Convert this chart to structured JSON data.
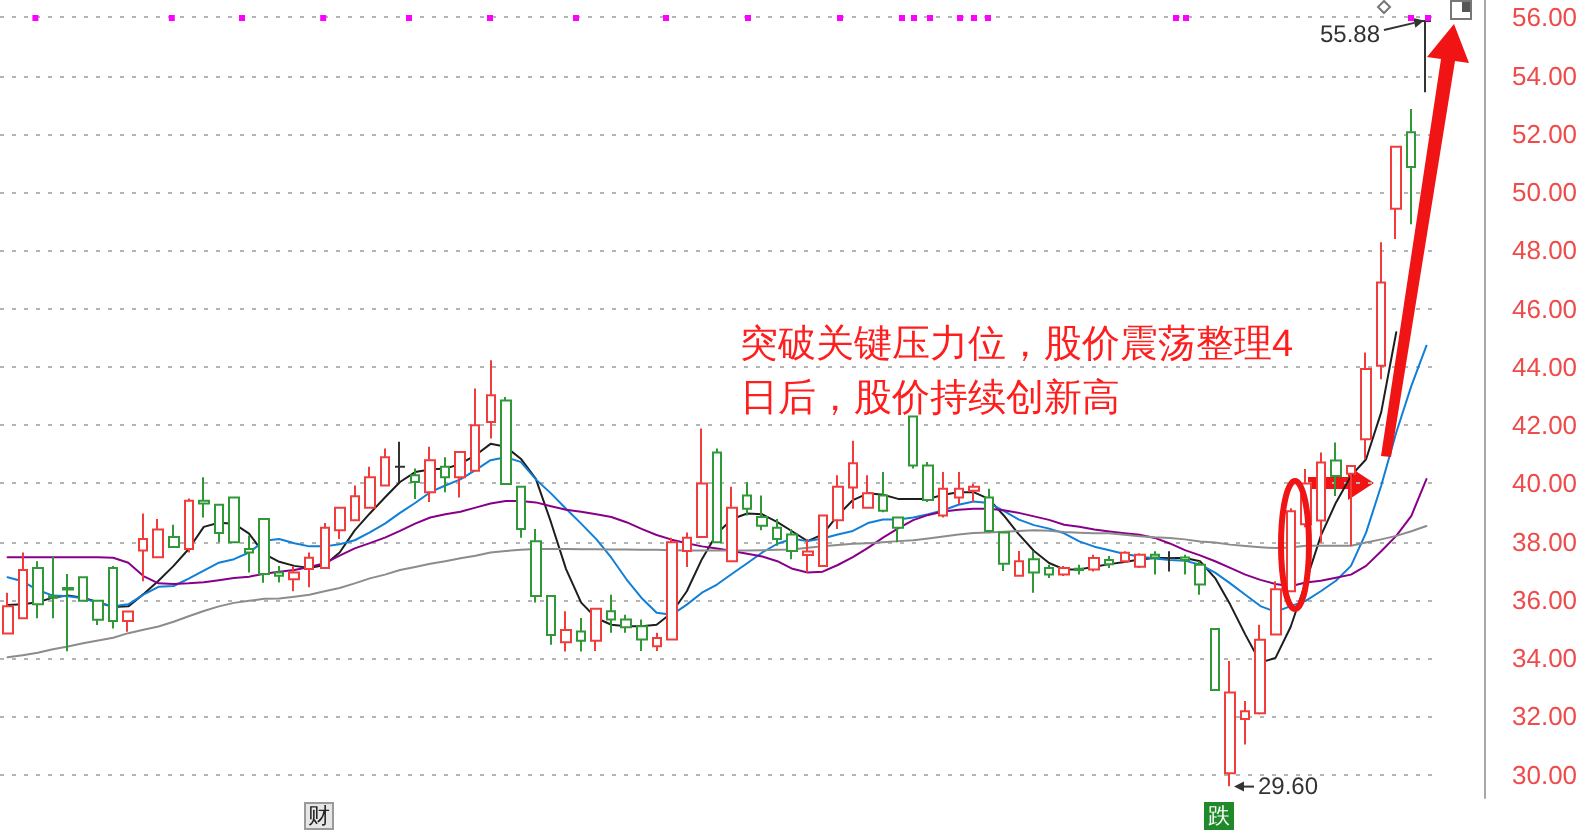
{
  "chart_data": {
    "type": "candlestick",
    "categories": [
      null,
      null,
      null,
      null,
      null,
      null,
      null,
      null,
      null,
      null,
      null,
      null,
      null,
      null,
      null,
      null,
      null,
      null,
      null,
      null,
      null,
      null,
      null,
      null,
      null,
      null,
      null,
      null,
      null,
      null,
      null,
      null,
      null,
      null,
      null,
      null,
      null,
      null,
      null,
      null,
      null,
      null,
      null,
      null,
      null,
      null,
      null,
      null,
      null,
      null,
      null,
      null,
      null,
      null,
      null,
      null,
      null,
      null,
      null,
      null,
      null,
      null,
      null,
      null,
      null,
      null,
      null,
      null,
      null,
      null,
      null,
      null,
      null,
      null,
      null,
      null,
      null,
      null,
      null,
      null,
      null,
      null,
      null,
      null,
      null,
      null,
      null,
      null,
      null,
      null,
      null,
      null,
      null,
      null,
      null
    ],
    "ohlc": [
      [
        34.85,
        36.25,
        34.85,
        35.78
      ],
      [
        35.37,
        37.63,
        35.37,
        37.03
      ],
      [
        37.1,
        37.33,
        35.37,
        35.85
      ],
      [
        36.13,
        37.51,
        35.37,
        36.08
      ],
      [
        36.41,
        36.89,
        34.24,
        36.36
      ],
      [
        36.78,
        36.8,
        35.95,
        35.97
      ],
      [
        35.97,
        35.97,
        35.14,
        35.32
      ],
      [
        37.1,
        37.17,
        35.02,
        35.28
      ],
      [
        35.28,
        35.6,
        34.91,
        35.6
      ],
      [
        37.7,
        38.97,
        36.64,
        38.09
      ],
      [
        37.47,
        38.78,
        37.47,
        38.42
      ],
      [
        38.16,
        38.58,
        37.82,
        37.82
      ],
      [
        37.75,
        39.48,
        37.63,
        39.41
      ],
      [
        39.41,
        40.21,
        38.83,
        39.31
      ],
      [
        39.27,
        39.27,
        37.98,
        38.3
      ],
      [
        39.52,
        39.52,
        37.98,
        37.98
      ],
      [
        37.75,
        38.21,
        36.94,
        37.63
      ],
      [
        38.78,
        38.78,
        36.59,
        36.89
      ],
      [
        36.94,
        37.17,
        36.6,
        36.83
      ],
      [
        36.71,
        37.17,
        36.3,
        36.94
      ],
      [
        37.06,
        37.63,
        36.44,
        37.45
      ],
      [
        37.1,
        38.64,
        37.1,
        38.48
      ],
      [
        38.39,
        39.17,
        38.09,
        39.17
      ],
      [
        38.74,
        39.93,
        38.74,
        39.56
      ],
      [
        39.17,
        40.57,
        39.17,
        40.21
      ],
      [
        39.93,
        41.2,
        39.93,
        40.9
      ],
      [
        40.57,
        41.43,
        40.05,
        40.57
      ],
      [
        40.28,
        40.51,
        39.47,
        40.05
      ],
      [
        39.7,
        41.26,
        39.36,
        40.8
      ],
      [
        40.57,
        40.9,
        39.7,
        40.21
      ],
      [
        40.21,
        41.08,
        39.52,
        41.08
      ],
      [
        40.44,
        43.26,
        40.44,
        42.0
      ],
      [
        42.11,
        44.23,
        41.54,
        43.03
      ],
      [
        42.85,
        42.97,
        39.98,
        39.98
      ],
      [
        39.89,
        39.89,
        38.14,
        38.44
      ],
      [
        38.02,
        38.44,
        35.91,
        36.14
      ],
      [
        36.14,
        36.14,
        34.46,
        34.8
      ],
      [
        34.55,
        35.61,
        34.23,
        34.97
      ],
      [
        34.92,
        35.38,
        34.23,
        34.6
      ],
      [
        34.6,
        35.7,
        34.25,
        35.7
      ],
      [
        35.61,
        36.18,
        34.87,
        35.33
      ],
      [
        35.33,
        35.49,
        34.87,
        35.06
      ],
      [
        35.1,
        35.33,
        34.25,
        34.64
      ],
      [
        34.41,
        34.87,
        34.25,
        34.69
      ],
      [
        34.64,
        38.14,
        34.64,
        37.98
      ],
      [
        37.68,
        38.32,
        37.13,
        38.14
      ],
      [
        38.16,
        41.89,
        38.16,
        40.0
      ],
      [
        41.06,
        41.2,
        37.98,
        37.98
      ],
      [
        37.33,
        39.89,
        37.33,
        39.17
      ],
      [
        39.59,
        40.05,
        38.9,
        39.13
      ],
      [
        38.85,
        39.59,
        38.39,
        38.55
      ],
      [
        38.48,
        38.78,
        37.86,
        38.09
      ],
      [
        38.25,
        38.44,
        37.4,
        37.68
      ],
      [
        37.54,
        38.09,
        36.94,
        37.66
      ],
      [
        37.17,
        38.9,
        37.17,
        38.9
      ],
      [
        38.74,
        40.28,
        38.44,
        39.89
      ],
      [
        39.86,
        41.47,
        39.13,
        40.69
      ],
      [
        39.17,
        40.28,
        39.17,
        39.66
      ],
      [
        39.59,
        40.39,
        39.01,
        39.06
      ],
      [
        38.83,
        38.83,
        37.98,
        38.48
      ],
      [
        42.3,
        42.3,
        40.51,
        40.62
      ],
      [
        40.62,
        40.74,
        39.36,
        39.43
      ],
      [
        38.9,
        40.39,
        38.83,
        39.82
      ],
      [
        39.52,
        40.39,
        39.29,
        39.82
      ],
      [
        39.75,
        39.98,
        39.36,
        39.89
      ],
      [
        39.52,
        39.82,
        38.32,
        38.37
      ],
      [
        38.32,
        38.32,
        36.99,
        37.24
      ],
      [
        36.83,
        37.68,
        36.83,
        37.33
      ],
      [
        37.4,
        37.68,
        36.25,
        36.94
      ],
      [
        37.1,
        37.21,
        36.75,
        36.87
      ],
      [
        36.87,
        37.17,
        36.82,
        37.1
      ],
      [
        37.07,
        37.21,
        36.87,
        37.03
      ],
      [
        37.05,
        37.55,
        36.98,
        37.44
      ],
      [
        37.37,
        37.51,
        37.1,
        37.23
      ],
      [
        37.33,
        37.67,
        37.28,
        37.62
      ],
      [
        37.14,
        37.6,
        37.1,
        37.55
      ],
      [
        37.55,
        37.67,
        36.87,
        37.46
      ],
      [
        37.44,
        37.67,
        36.98,
        37.44
      ],
      [
        37.46,
        37.55,
        36.87,
        37.37
      ],
      [
        37.21,
        37.33,
        36.18,
        36.53
      ],
      [
        35.0,
        35.0,
        32.91,
        32.91
      ],
      [
        30.05,
        33.9,
        29.6,
        32.82
      ],
      [
        31.91,
        32.53,
        31.04,
        32.18
      ],
      [
        32.11,
        35.15,
        32.07,
        34.63
      ],
      [
        34.81,
        36.64,
        34.81,
        36.37
      ],
      [
        36.3,
        39.15,
        36.3,
        39.05
      ],
      [
        38.6,
        40.5,
        38.5,
        40.0
      ],
      [
        38.73,
        41.06,
        37.97,
        40.72
      ],
      [
        40.79,
        41.41,
        39.57,
        40.26
      ],
      [
        40.33,
        40.62,
        37.86,
        40.6
      ],
      [
        41.52,
        44.5,
        40.83,
        43.93
      ],
      [
        44.04,
        48.28,
        43.58,
        46.9
      ],
      [
        49.43,
        51.56,
        48.39,
        51.56
      ],
      [
        52.06,
        52.86,
        48.9,
        50.87
      ],
      [
        55.88,
        55.88,
        53.43,
        55.88
      ]
    ],
    "colors": [
      "#f23c3c",
      "#f23c3c",
      "#2e9936",
      "#2e9936",
      "#2e9936",
      "#2e9936",
      "#2e9936",
      "#2e9936",
      "#f23c3c",
      "#f23c3c",
      "#f23c3c",
      "#2e9936",
      "#f23c3c",
      "#2e9936",
      "#2e9936",
      "#2e9936",
      "#2e9936",
      "#2e9936",
      "#2e9936",
      "#f23c3c",
      "#f23c3c",
      "#f23c3c",
      "#f23c3c",
      "#f23c3c",
      "#f23c3c",
      "#f23c3c",
      "#333333",
      "#2e9936",
      "#f23c3c",
      "#2e9936",
      "#f23c3c",
      "#f23c3c",
      "#f23c3c",
      "#2e9936",
      "#2e9936",
      "#2e9936",
      "#2e9936",
      "#f23c3c",
      "#2e9936",
      "#f23c3c",
      "#2e9936",
      "#2e9936",
      "#2e9936",
      "#f23c3c",
      "#f23c3c",
      "#f23c3c",
      "#f23c3c",
      "#2e9936",
      "#f23c3c",
      "#2e9936",
      "#2e9936",
      "#2e9936",
      "#2e9936",
      "#f23c3c",
      "#f23c3c",
      "#f23c3c",
      "#f23c3c",
      "#f23c3c",
      "#2e9936",
      "#2e9936",
      "#2e9936",
      "#2e9936",
      "#f23c3c",
      "#f23c3c",
      "#f23c3c",
      "#2e9936",
      "#2e9936",
      "#f23c3c",
      "#2e9936",
      "#2e9936",
      "#f23c3c",
      "#2e9936",
      "#f23c3c",
      "#2e9936",
      "#f23c3c",
      "#f23c3c",
      "#2e9936",
      "#333333",
      "#2e9936",
      "#2e9936",
      "#2e9936",
      "#f23c3c",
      "#f23c3c",
      "#f23c3c",
      "#f23c3c",
      "#f23c3c",
      "#f23c3c",
      "#f23c3c",
      "#2e9936",
      "#f23c3c",
      "#f23c3c",
      "#f23c3c",
      "#f23c3c",
      "#2e9936",
      "#333333"
    ],
    "series": [
      {
        "type": "line",
        "color": "#1e1e1e",
        "values": [
          35.83,
          35.85,
          35.92,
          36.08,
          36.15,
          36.08,
          35.92,
          35.76,
          35.78,
          36.2,
          36.66,
          37.17,
          37.75,
          38.51,
          38.65,
          38.62,
          38.28,
          37.58,
          37.31,
          37.17,
          37.1,
          37.2,
          37.63,
          38.39,
          38.97,
          39.52,
          40.05,
          40.39,
          40.48,
          40.51,
          40.67,
          40.97,
          41.36,
          41.26,
          40.85,
          40.16,
          38.67,
          37.06,
          35.91,
          35.38,
          35.15,
          35.1,
          35.1,
          35.15,
          35.56,
          36.3,
          37.4,
          38.28,
          38.78,
          38.97,
          38.94,
          38.67,
          38.35,
          38.02,
          38.25,
          38.9,
          39.43,
          39.66,
          39.61,
          39.47,
          39.47,
          39.47,
          39.61,
          39.7,
          39.7,
          39.47,
          38.9,
          38.25,
          37.68,
          37.27,
          37.05,
          37.05,
          37.14,
          37.23,
          37.3,
          37.39,
          37.44,
          37.44,
          37.44,
          37.33,
          36.75,
          35.84,
          34.81,
          33.85,
          34.01,
          35.07,
          36.6,
          38.2,
          39.34,
          40.26,
          40.83,
          42.44,
          45.19,
          null,
          null
        ]
      },
      {
        "type": "line",
        "color": "#0f7fd8",
        "values": [
          36.78,
          36.64,
          36.34,
          36.15,
          36.13,
          36.06,
          35.9,
          35.78,
          35.85,
          36.18,
          36.45,
          36.48,
          36.73,
          37.01,
          37.28,
          37.4,
          37.63,
          38.03,
          38.09,
          37.95,
          37.84,
          37.84,
          37.91,
          38.05,
          38.32,
          38.62,
          38.99,
          39.33,
          39.7,
          39.93,
          40.14,
          40.46,
          40.8,
          40.9,
          40.74,
          40.14,
          39.66,
          39.13,
          38.62,
          38.09,
          37.45,
          36.71,
          36.07,
          35.56,
          35.49,
          35.84,
          36.25,
          36.53,
          36.9,
          37.26,
          37.63,
          37.93,
          38.1,
          38.02,
          38.11,
          38.25,
          38.37,
          38.64,
          38.76,
          38.76,
          38.83,
          38.94,
          39.08,
          39.27,
          39.38,
          39.33,
          39.06,
          38.76,
          38.57,
          38.45,
          38.29,
          38.01,
          37.83,
          37.71,
          37.58,
          37.49,
          37.42,
          37.37,
          37.35,
          37.21,
          36.94,
          36.57,
          36.18,
          35.79,
          35.59,
          35.79,
          35.97,
          36.3,
          36.66,
          37.17,
          38.31,
          39.92,
          41.75,
          43.35,
          44.73
        ]
      },
      {
        "type": "line",
        "color": "#880088",
        "values": [
          37.47,
          37.47,
          37.47,
          37.47,
          37.47,
          37.47,
          37.47,
          37.45,
          37.28,
          36.82,
          36.57,
          36.55,
          36.57,
          36.61,
          36.68,
          36.75,
          36.8,
          36.9,
          36.97,
          37.03,
          37.13,
          37.26,
          37.52,
          37.77,
          37.95,
          38.14,
          38.37,
          38.62,
          38.83,
          38.94,
          39.03,
          39.17,
          39.31,
          39.4,
          39.4,
          39.35,
          39.22,
          39.1,
          39.03,
          38.94,
          38.85,
          38.67,
          38.44,
          38.23,
          38.07,
          37.95,
          37.84,
          37.77,
          37.68,
          37.59,
          37.49,
          37.33,
          37.07,
          36.94,
          36.97,
          37.2,
          37.47,
          37.79,
          38.14,
          38.46,
          38.74,
          38.92,
          39.04,
          39.1,
          39.13,
          39.13,
          39.08,
          38.99,
          38.87,
          38.75,
          38.58,
          38.51,
          38.42,
          38.35,
          38.29,
          38.24,
          38.13,
          37.94,
          37.71,
          37.53,
          37.33,
          37.1,
          36.87,
          36.69,
          36.55,
          36.47,
          36.6,
          36.66,
          36.76,
          36.87,
          37.17,
          37.67,
          38.2,
          38.89,
          40.15
        ]
      },
      {
        "type": "line",
        "color": "#8c8c8c",
        "values": [
          34.03,
          34.1,
          34.19,
          34.31,
          34.4,
          34.51,
          34.61,
          34.7,
          34.86,
          34.98,
          35.09,
          35.25,
          35.44,
          35.62,
          35.78,
          35.9,
          35.97,
          36.04,
          36.05,
          36.11,
          36.18,
          36.3,
          36.41,
          36.57,
          36.74,
          36.87,
          37.03,
          37.13,
          37.24,
          37.33,
          37.43,
          37.52,
          37.63,
          37.68,
          37.72,
          37.75,
          37.75,
          37.75,
          37.74,
          37.74,
          37.73,
          37.73,
          37.72,
          37.72,
          37.71,
          37.7,
          37.7,
          37.7,
          37.7,
          37.7,
          37.71,
          37.72,
          37.73,
          37.79,
          37.84,
          37.89,
          37.93,
          37.95,
          37.98,
          38.02,
          38.05,
          38.11,
          38.18,
          38.25,
          38.3,
          38.32,
          38.34,
          38.37,
          38.39,
          38.38,
          38.33,
          38.31,
          38.29,
          38.29,
          38.24,
          38.19,
          38.15,
          38.13,
          38.08,
          38.01,
          37.97,
          37.9,
          37.85,
          37.81,
          37.78,
          37.8,
          37.86,
          37.86,
          37.86,
          37.86,
          37.97,
          38.08,
          38.2,
          38.36,
          38.54
        ]
      }
    ],
    "ylim": [
      29.2,
      56.6
    ],
    "yticks": [
      {
        "value": 30,
        "label": "30.00"
      },
      {
        "value": 32,
        "label": "32.00"
      },
      {
        "value": 34,
        "label": "34.00"
      },
      {
        "value": 36,
        "label": "36.00"
      },
      {
        "value": 38,
        "label": "38.00"
      },
      {
        "value": 40,
        "label": "40.00"
      },
      {
        "value": 42,
        "label": "42.00"
      },
      {
        "value": 44,
        "label": "44.00"
      },
      {
        "value": 46,
        "label": "46.00"
      },
      {
        "value": 48,
        "label": "48.00"
      },
      {
        "value": 50,
        "label": "50.00"
      },
      {
        "value": 52,
        "label": "52.00"
      },
      {
        "value": 54,
        "label": "54.00"
      },
      {
        "value": 56,
        "label": "56.00"
      }
    ],
    "grid": "y",
    "tick_labels": "y",
    "annotations": [
      "突破关键压力位，股价震荡整理4日后，股价持续创新高",
      "财",
      "跌",
      "55.88",
      "29.60"
    ]
  }
}
